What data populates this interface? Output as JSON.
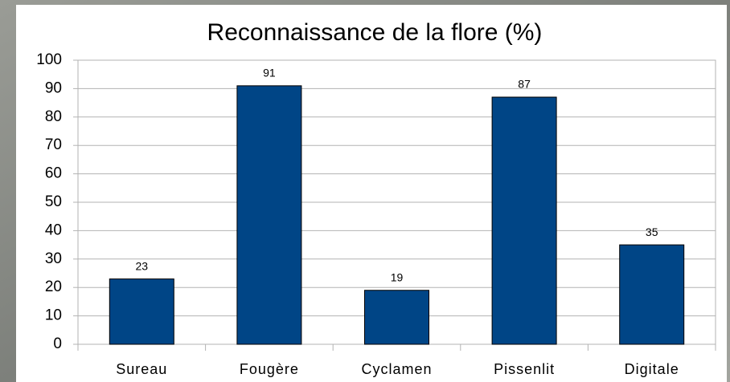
{
  "chart_data": {
    "type": "bar",
    "title": "Reconnaissance de la flore (%)",
    "categories": [
      "Sureau",
      "Fougère",
      "Cyclamen",
      "Pissenlit",
      "Digitale"
    ],
    "values": [
      23,
      91,
      19,
      87,
      35
    ],
    "color": "#004586",
    "ylim": [
      0,
      100
    ],
    "yticks": [
      0,
      10,
      20,
      30,
      40,
      50,
      60,
      70,
      80,
      90,
      100
    ],
    "grid": true
  }
}
